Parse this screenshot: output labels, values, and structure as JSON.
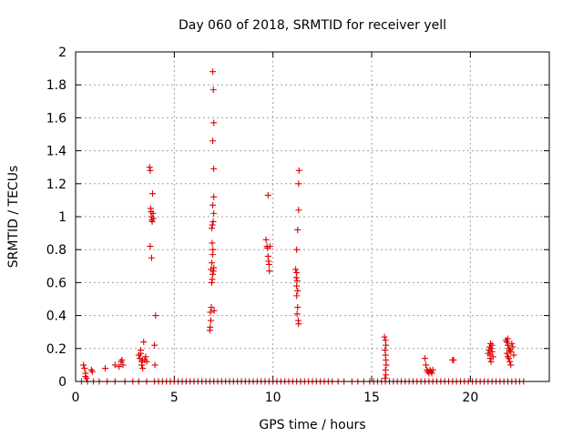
{
  "chart_data": {
    "type": "scatter",
    "title": "Day 060 of 2018, SRMTID for receiver yell",
    "xlabel": "GPS time / hours",
    "ylabel": "SRMTID / TECUs",
    "xlim": [
      0,
      24
    ],
    "ylim": [
      0,
      2
    ],
    "xticks": [
      0,
      5,
      10,
      15,
      20
    ],
    "xtick_labels": [
      "0",
      "5",
      "10",
      "15",
      "20"
    ],
    "yticks": [
      0,
      0.2,
      0.4,
      0.6,
      0.8,
      1,
      1.2,
      1.4,
      1.6,
      1.8,
      2
    ],
    "ytick_labels": [
      "0",
      "0.2",
      "0.4",
      "0.6",
      "0.8",
      "1",
      "1.2",
      "1.4",
      "1.6",
      "1.8",
      "2"
    ],
    "grid": true,
    "marker": "+",
    "color": "#e00000",
    "series": [
      {
        "name": "SRMTID",
        "points": [
          [
            0.4,
            0.1
          ],
          [
            0.45,
            0.08
          ],
          [
            0.5,
            0.05
          ],
          [
            0.5,
            0.03
          ],
          [
            0.55,
            0.02
          ],
          [
            0.8,
            0.07
          ],
          [
            0.85,
            0.06
          ],
          [
            1.5,
            0.08
          ],
          [
            2.0,
            0.1
          ],
          [
            2.2,
            0.09
          ],
          [
            2.3,
            0.12
          ],
          [
            2.35,
            0.13
          ],
          [
            2.4,
            0.1
          ],
          [
            3.2,
            0.16
          ],
          [
            3.25,
            0.14
          ],
          [
            3.3,
            0.19
          ],
          [
            3.3,
            0.17
          ],
          [
            3.35,
            0.12
          ],
          [
            3.35,
            0.1
          ],
          [
            3.4,
            0.08
          ],
          [
            3.4,
            0.13
          ],
          [
            3.45,
            0.24
          ],
          [
            3.5,
            0.13
          ],
          [
            3.55,
            0.15
          ],
          [
            3.6,
            0.12
          ],
          [
            3.75,
            1.3
          ],
          [
            3.78,
            1.28
          ],
          [
            3.8,
            1.05
          ],
          [
            3.82,
            1.03
          ],
          [
            3.84,
            1.0
          ],
          [
            3.86,
            0.98
          ],
          [
            3.88,
            0.97
          ],
          [
            3.9,
            1.14
          ],
          [
            3.92,
            1.02
          ],
          [
            3.94,
            0.99
          ],
          [
            3.78,
            0.82
          ],
          [
            3.85,
            0.75
          ],
          [
            4.05,
            0.4
          ],
          [
            4.0,
            0.22
          ],
          [
            4.02,
            0.1
          ],
          [
            6.8,
            0.31
          ],
          [
            6.82,
            0.33
          ],
          [
            6.85,
            0.37
          ],
          [
            6.83,
            0.42
          ],
          [
            6.88,
            0.45
          ],
          [
            6.9,
            0.6
          ],
          [
            6.92,
            0.62
          ],
          [
            6.95,
            0.65
          ],
          [
            6.98,
            0.67
          ],
          [
            7.0,
            0.69
          ],
          [
            6.86,
            0.68
          ],
          [
            6.9,
            0.72
          ],
          [
            6.94,
            0.77
          ],
          [
            6.96,
            0.8
          ],
          [
            6.92,
            0.84
          ],
          [
            6.9,
            0.93
          ],
          [
            6.93,
            0.95
          ],
          [
            6.97,
            0.97
          ],
          [
            7.0,
            1.02
          ],
          [
            6.95,
            1.07
          ],
          [
            7.0,
            1.12
          ],
          [
            7.0,
            1.29
          ],
          [
            6.95,
            1.46
          ],
          [
            7.0,
            1.57
          ],
          [
            6.98,
            1.77
          ],
          [
            6.95,
            1.88
          ],
          [
            7.02,
            0.43
          ],
          [
            9.65,
            0.86
          ],
          [
            9.7,
            0.82
          ],
          [
            9.72,
            0.81
          ],
          [
            9.75,
            0.76
          ],
          [
            9.78,
            0.73
          ],
          [
            9.8,
            0.71
          ],
          [
            9.82,
            0.67
          ],
          [
            9.85,
            0.82
          ],
          [
            9.75,
            1.13
          ],
          [
            11.15,
            0.68
          ],
          [
            11.2,
            0.66
          ],
          [
            11.18,
            0.63
          ],
          [
            11.22,
            0.61
          ],
          [
            11.2,
            0.58
          ],
          [
            11.25,
            0.55
          ],
          [
            11.2,
            0.52
          ],
          [
            11.25,
            0.45
          ],
          [
            11.22,
            0.41
          ],
          [
            11.28,
            0.37
          ],
          [
            11.3,
            0.35
          ],
          [
            11.2,
            0.8
          ],
          [
            11.25,
            0.92
          ],
          [
            11.3,
            1.04
          ],
          [
            11.3,
            1.2
          ],
          [
            11.32,
            1.28
          ],
          [
            15.65,
            0.27
          ],
          [
            15.7,
            0.25
          ],
          [
            15.72,
            0.22
          ],
          [
            15.68,
            0.19
          ],
          [
            15.7,
            0.16
          ],
          [
            15.72,
            0.13
          ],
          [
            15.74,
            0.1
          ],
          [
            15.7,
            0.07
          ],
          [
            15.72,
            0.04
          ],
          [
            15.68,
            0.02
          ],
          [
            17.7,
            0.14
          ],
          [
            17.75,
            0.1
          ],
          [
            17.8,
            0.07
          ],
          [
            17.85,
            0.06
          ],
          [
            17.9,
            0.05
          ],
          [
            17.95,
            0.07
          ],
          [
            18.0,
            0.06
          ],
          [
            18.05,
            0.05
          ],
          [
            18.1,
            0.07
          ],
          [
            19.1,
            0.13
          ],
          [
            19.15,
            0.13
          ],
          [
            20.9,
            0.17
          ],
          [
            20.95,
            0.19
          ],
          [
            21.0,
            0.16
          ],
          [
            21.05,
            0.2
          ],
          [
            21.1,
            0.22
          ],
          [
            21.0,
            0.14
          ],
          [
            21.05,
            0.12
          ],
          [
            21.1,
            0.18
          ],
          [
            21.15,
            0.15
          ],
          [
            20.98,
            0.21
          ],
          [
            21.02,
            0.23
          ],
          [
            21.8,
            0.25
          ],
          [
            21.85,
            0.24
          ],
          [
            21.9,
            0.22
          ],
          [
            21.95,
            0.2
          ],
          [
            22.0,
            0.19
          ],
          [
            22.05,
            0.18
          ],
          [
            21.85,
            0.17
          ],
          [
            21.9,
            0.15
          ],
          [
            21.95,
            0.14
          ],
          [
            22.0,
            0.12
          ],
          [
            22.05,
            0.1
          ],
          [
            21.9,
            0.26
          ],
          [
            22.1,
            0.23
          ],
          [
            22.15,
            0.21
          ],
          [
            22.2,
            0.16
          ],
          [
            0.3,
            0
          ],
          [
            0.6,
            0
          ],
          [
            0.9,
            0
          ],
          [
            1.2,
            0
          ],
          [
            1.6,
            0
          ],
          [
            2.0,
            0
          ],
          [
            2.5,
            0
          ],
          [
            2.9,
            0
          ],
          [
            3.2,
            0
          ],
          [
            3.6,
            0
          ],
          [
            4.0,
            0
          ],
          [
            4.2,
            0
          ],
          [
            4.4,
            0
          ],
          [
            4.6,
            0
          ],
          [
            4.8,
            0
          ],
          [
            5.0,
            0
          ],
          [
            5.2,
            0
          ],
          [
            5.4,
            0
          ],
          [
            5.6,
            0
          ],
          [
            5.8,
            0
          ],
          [
            6.0,
            0
          ],
          [
            6.2,
            0
          ],
          [
            6.4,
            0
          ],
          [
            6.6,
            0
          ],
          [
            6.8,
            0
          ],
          [
            7.0,
            0
          ],
          [
            7.2,
            0
          ],
          [
            7.4,
            0
          ],
          [
            7.6,
            0
          ],
          [
            7.8,
            0
          ],
          [
            8.0,
            0
          ],
          [
            8.2,
            0
          ],
          [
            8.4,
            0
          ],
          [
            8.6,
            0
          ],
          [
            8.8,
            0
          ],
          [
            9.0,
            0
          ],
          [
            9.2,
            0
          ],
          [
            9.4,
            0
          ],
          [
            9.6,
            0
          ],
          [
            9.8,
            0
          ],
          [
            10.0,
            0
          ],
          [
            10.2,
            0
          ],
          [
            10.4,
            0
          ],
          [
            10.6,
            0
          ],
          [
            10.8,
            0
          ],
          [
            11.0,
            0
          ],
          [
            11.2,
            0
          ],
          [
            11.4,
            0
          ],
          [
            11.6,
            0
          ],
          [
            11.8,
            0
          ],
          [
            12.0,
            0
          ],
          [
            12.2,
            0
          ],
          [
            12.4,
            0
          ],
          [
            12.6,
            0
          ],
          [
            12.8,
            0
          ],
          [
            13.0,
            0
          ],
          [
            13.3,
            0
          ],
          [
            13.6,
            0
          ],
          [
            14.0,
            0
          ],
          [
            14.3,
            0
          ],
          [
            14.6,
            0
          ],
          [
            14.9,
            0
          ],
          [
            15.1,
            0
          ],
          [
            15.3,
            0
          ],
          [
            15.5,
            0
          ],
          [
            15.7,
            0
          ],
          [
            15.9,
            0
          ],
          [
            16.1,
            0
          ],
          [
            16.3,
            0
          ],
          [
            16.5,
            0
          ],
          [
            16.7,
            0
          ],
          [
            16.9,
            0
          ],
          [
            17.1,
            0
          ],
          [
            17.3,
            0
          ],
          [
            17.5,
            0
          ],
          [
            17.7,
            0
          ],
          [
            17.9,
            0
          ],
          [
            18.1,
            0
          ],
          [
            18.3,
            0
          ],
          [
            18.5,
            0
          ],
          [
            18.7,
            0
          ],
          [
            18.9,
            0
          ],
          [
            19.1,
            0
          ],
          [
            19.3,
            0
          ],
          [
            19.5,
            0
          ],
          [
            19.7,
            0
          ],
          [
            19.9,
            0
          ],
          [
            20.1,
            0
          ],
          [
            20.3,
            0
          ],
          [
            20.5,
            0
          ],
          [
            20.7,
            0
          ],
          [
            20.9,
            0
          ],
          [
            21.1,
            0
          ],
          [
            21.3,
            0
          ],
          [
            21.5,
            0
          ],
          [
            21.7,
            0
          ],
          [
            21.9,
            0
          ],
          [
            22.1,
            0
          ],
          [
            22.3,
            0
          ],
          [
            22.5,
            0
          ],
          [
            22.7,
            0
          ]
        ]
      }
    ]
  }
}
